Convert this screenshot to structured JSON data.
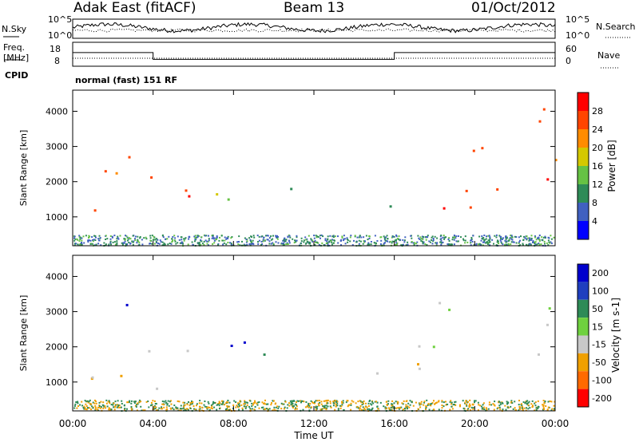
{
  "header": {
    "title": "Adak East (fitACF)",
    "beam": "Beam 13",
    "date": "01/Oct/2012"
  },
  "noise_panel": {
    "left_label": "N.Sky",
    "right_label": "N.Search",
    "left_ticks": [
      "10^5",
      "10^0"
    ],
    "right_ticks": [
      "10^5",
      "10^0"
    ]
  },
  "freq_panel": {
    "left_label_1": "Freq.",
    "left_label_2": "[MHz]",
    "left_ticks": [
      "18",
      "8"
    ],
    "right_ticks": [
      "60",
      "0"
    ],
    "right_label": "Nave"
  },
  "cpid": {
    "label": "CPID",
    "value": "normal (fast) 151 RF"
  },
  "colors": {
    "power_scale": [
      "#0000ff",
      "#4060c0",
      "#2e8b57",
      "#66c244",
      "#d4c800",
      "#ff8c00",
      "#ff4500",
      "#ff0000"
    ],
    "velocity_scale": [
      "#0000cd",
      "#1f3fbf",
      "#2e8b57",
      "#6fd13f",
      "#c8c8c8",
      "#f0a000",
      "#ff6a00",
      "#ff0000"
    ],
    "ground_scatter": "#a9a9a9"
  },
  "chart_data": [
    {
      "type": "heatmap",
      "name_print": "Power [dB]",
      "ylabel": "Slant Range [km]",
      "xlabel": "Time UT",
      "x_ticks": [
        "00:00",
        "04:00",
        "08:00",
        "12:00",
        "16:00",
        "20:00",
        "00:00"
      ],
      "xlim_hours": [
        0,
        24
      ],
      "y_ticks": [
        1000,
        2000,
        3000,
        4000
      ],
      "ylim": [
        180,
        4600
      ],
      "colorbar_label": "Power [dB]",
      "colorbar_ticks": [
        4,
        8,
        12,
        16,
        20,
        24,
        28
      ],
      "colorbar_range": [
        0,
        32
      ],
      "regions": [
        {
          "t": [
            0.0,
            4.0
          ],
          "r": [
            900,
            2800
          ],
          "value": 26
        },
        {
          "t": [
            4.0,
            6.0
          ],
          "r": [
            600,
            2000
          ],
          "value": 26
        },
        {
          "t": [
            6.3,
            9.4
          ],
          "r": [
            1300,
            2200
          ],
          "value": 18
        },
        {
          "t": [
            9.4,
            11.7
          ],
          "r": [
            1600,
            2300
          ],
          "value": 13
        },
        {
          "t": [
            14.2,
            16.3
          ],
          "r": [
            1000,
            1400
          ],
          "value": 7
        },
        {
          "t": [
            17.0,
            24.0
          ],
          "r": [
            1200,
            2200
          ],
          "value": 27
        },
        {
          "t": [
            18.4,
            24.0
          ],
          "r": [
            2500,
            3300
          ],
          "value": 26
        },
        {
          "t": [
            19.5,
            24.0
          ],
          "r": [
            3600,
            4200
          ],
          "value": 24
        }
      ]
    },
    {
      "type": "heatmap",
      "ylabel": "Slant Range [km]",
      "xlabel": "Time UT",
      "x_ticks": [
        "00:00",
        "04:00",
        "08:00",
        "12:00",
        "16:00",
        "20:00",
        "00:00"
      ],
      "xlim_hours": [
        0,
        24
      ],
      "y_ticks": [
        1000,
        2000,
        3000,
        4000
      ],
      "ylim": [
        180,
        4600
      ],
      "colorbar_label": "Velocity [m s-1]",
      "colorbar_ticks": [
        200,
        100,
        50,
        15,
        -15,
        -50,
        -100,
        -200
      ],
      "regions": [
        {
          "t": [
            0.2,
            2.8
          ],
          "r": [
            2600,
            3400
          ],
          "value": 200
        },
        {
          "t": [
            0.0,
            4.0
          ],
          "r": [
            1000,
            2300
          ],
          "value": 0
        },
        {
          "t": [
            4.0,
            6.0
          ],
          "r": [
            700,
            2000
          ],
          "value": 10
        },
        {
          "t": [
            6.3,
            9.4
          ],
          "r": [
            1300,
            2200
          ],
          "value": 220
        },
        {
          "t": [
            9.4,
            11.7
          ],
          "r": [
            1600,
            2300
          ],
          "value": 60
        },
        {
          "t": [
            14.2,
            16.3
          ],
          "r": [
            1000,
            1400
          ],
          "value": 0
        },
        {
          "t": [
            17.0,
            24.0
          ],
          "r": [
            1200,
            2200
          ],
          "value": 0
        },
        {
          "t": [
            17.0,
            24.0
          ],
          "r": [
            2500,
            3300
          ],
          "value": 0
        }
      ]
    }
  ]
}
